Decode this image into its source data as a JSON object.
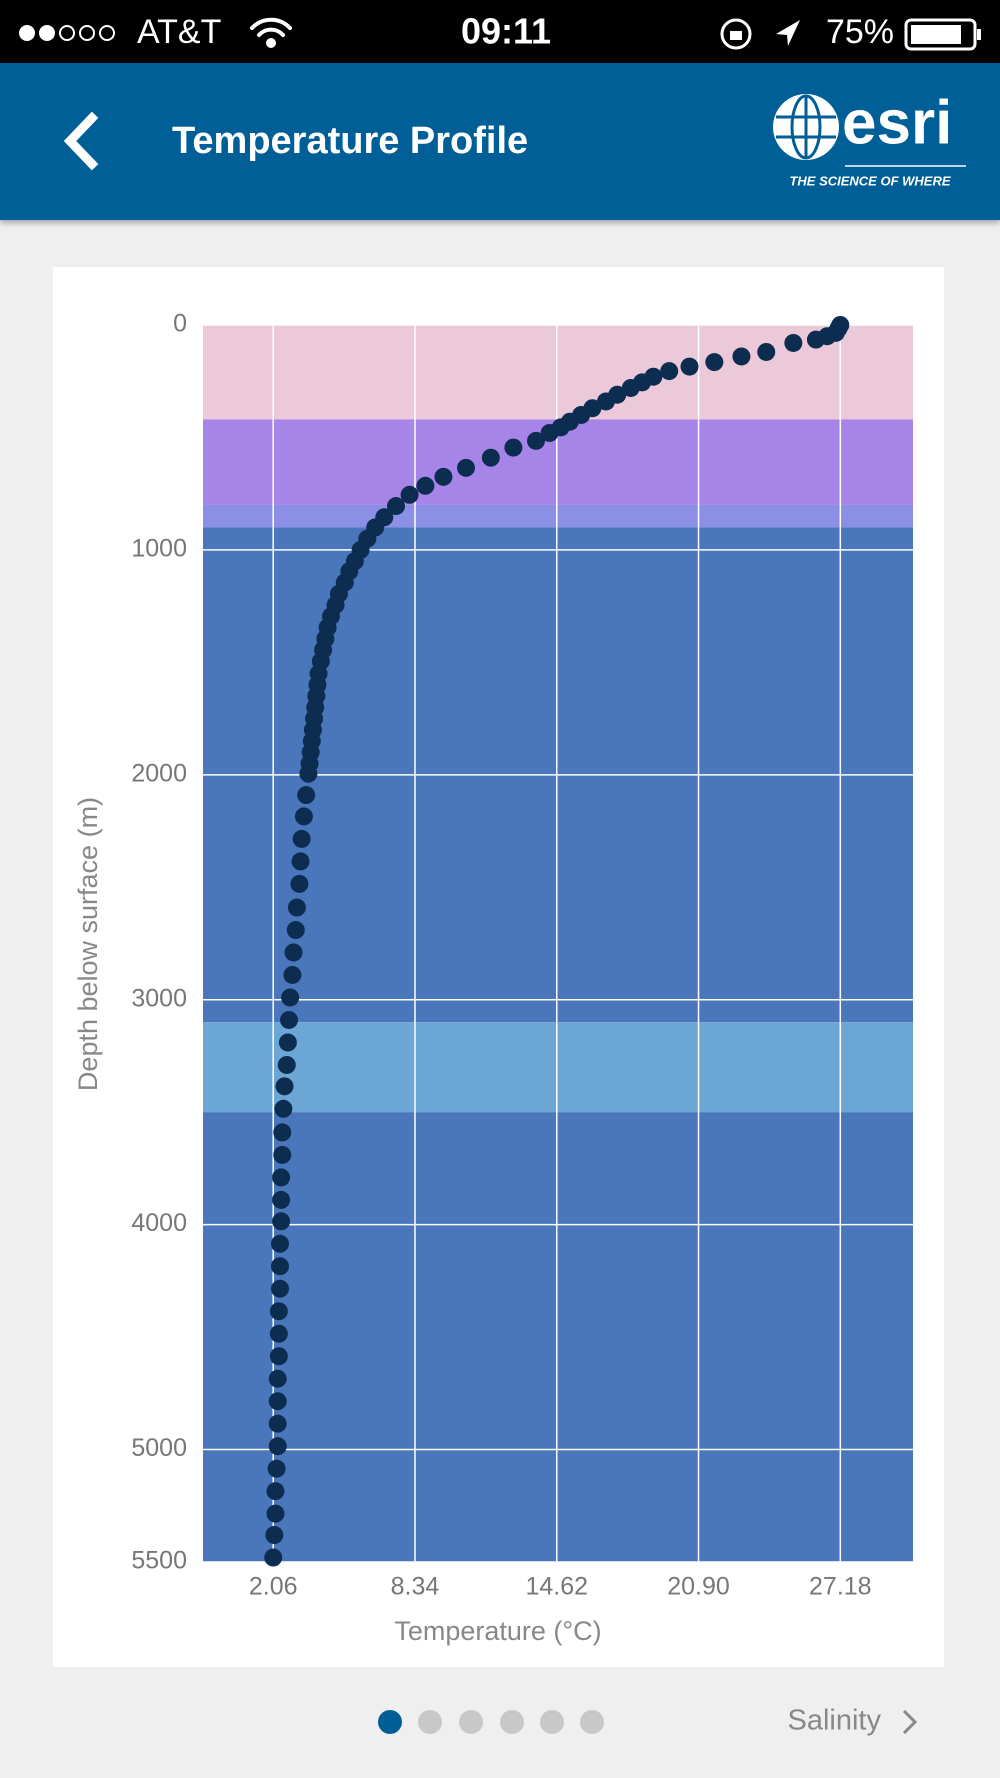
{
  "status_bar": {
    "carrier": "AT&T",
    "time": "09:11",
    "battery": "75%"
  },
  "header": {
    "title": "Temperature Profile",
    "logo": "esri",
    "tagline": "THE SCIENCE OF WHERE"
  },
  "chart_data": {
    "type": "scatter",
    "x_label": "Temperature (°C)",
    "y_label": "Depth below surface (m)",
    "color": "#0d2d50",
    "grid": true,
    "y_inverted": true,
    "xlim": [
      -1.05,
      30.4
    ],
    "ylim": [
      0,
      5500
    ],
    "xticks": [
      2.06,
      8.34,
      14.62,
      {
        "value": 20.9,
        "label": "20.90"
      },
      27.18
    ],
    "yticks": [
      0,
      1000,
      2000,
      3000,
      4000,
      5000,
      5500
    ],
    "bands": [
      {
        "from": 0,
        "to": 420,
        "color": "#ecc9d9"
      },
      {
        "from": 420,
        "to": 800,
        "color": "#a784e8"
      },
      {
        "from": 800,
        "to": 900,
        "color": "#8b8fe6"
      },
      {
        "from": 900,
        "to": 3100,
        "color": "#4a76bb"
      },
      {
        "from": 3100,
        "to": 3500,
        "color": "#6ca6d4"
      },
      {
        "from": 3500,
        "to": 5500,
        "color": "#4a76bb"
      }
    ],
    "x": [
      27.18,
      27.1,
      26.98,
      26.6,
      26.1,
      25.1,
      23.9,
      22.8,
      21.6,
      20.5,
      19.6,
      18.9,
      18.4,
      17.9,
      17.3,
      16.8,
      16.2,
      15.7,
      15.2,
      14.8,
      14.3,
      13.7,
      12.7,
      11.7,
      10.6,
      9.6,
      8.8,
      8.1,
      7.5,
      6.98,
      6.58,
      6.23,
      5.93,
      5.68,
      5.43,
      5.23,
      4.97,
      4.82,
      4.62,
      4.47,
      4.37,
      4.27,
      4.17,
      4.07,
      4.02,
      3.97,
      3.92,
      3.87,
      3.82,
      3.77,
      3.72,
      3.67,
      3.62,
      3.52,
      3.42,
      3.32,
      3.27,
      3.22,
      3.11,
      3.06,
      2.96,
      2.91,
      2.81,
      2.76,
      2.71,
      2.66,
      2.56,
      2.51,
      2.46,
      2.46,
      2.41,
      2.41,
      2.41,
      2.36,
      2.36,
      2.36,
      2.31,
      2.31,
      2.31,
      2.26,
      2.26,
      2.26,
      2.26,
      2.21,
      2.16,
      2.16,
      2.11,
      2.06
    ],
    "values": [
      0,
      15,
      35,
      50,
      65,
      80,
      120,
      140,
      165,
      185,
      205,
      230,
      255,
      280,
      310,
      340,
      370,
      400,
      430,
      455,
      480,
      515,
      545,
      590,
      635,
      675,
      715,
      755,
      805,
      855,
      900,
      950,
      1000,
      1050,
      1095,
      1145,
      1195,
      1245,
      1295,
      1345,
      1395,
      1445,
      1495,
      1550,
      1600,
      1650,
      1700,
      1750,
      1800,
      1850,
      1900,
      1950,
      1995,
      2090,
      2185,
      2285,
      2385,
      2485,
      2590,
      2690,
      2790,
      2890,
      2990,
      3090,
      3190,
      3290,
      3385,
      3485,
      3590,
      3690,
      3790,
      3890,
      3985,
      4085,
      4185,
      4285,
      4385,
      4485,
      4585,
      4685,
      4785,
      4885,
      4985,
      5085,
      5185,
      5285,
      5380,
      5480
    ]
  },
  "footer": {
    "next_label": "Salinity"
  }
}
